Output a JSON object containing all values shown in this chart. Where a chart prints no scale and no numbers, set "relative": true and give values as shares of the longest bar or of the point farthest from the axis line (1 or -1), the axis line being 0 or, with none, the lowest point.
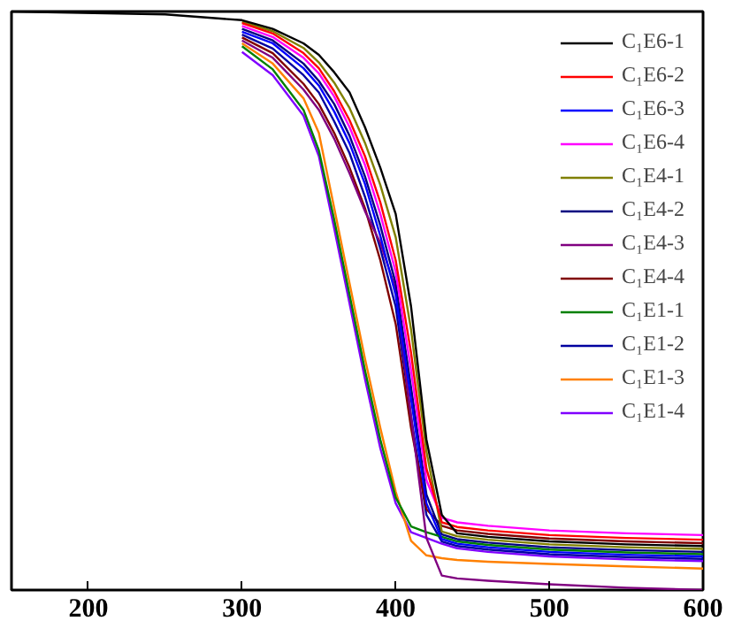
{
  "chart_data": {
    "type": "line",
    "relative": true,
    "legend": "top right",
    "grid": false,
    "marker": "none",
    "line_style": "solid",
    "x": [
      150,
      250,
      300,
      320,
      340,
      350,
      360,
      370,
      380,
      390,
      400,
      410,
      420,
      430,
      440,
      460,
      500,
      550,
      600
    ],
    "xlim": [
      150,
      600
    ],
    "xticks": [
      200,
      300,
      400,
      500,
      600
    ],
    "series": [
      {
        "name": "C₁E6-1",
        "color": "#000000",
        "values": [
          1,
          0.995,
          0.985,
          0.97,
          0.945,
          0.925,
          0.895,
          0.86,
          0.8,
          0.73,
          0.65,
          0.49,
          0.26,
          0.13,
          0.098,
          0.092,
          0.084,
          0.079,
          0.076
        ]
      },
      {
        "name": "C₁E6-2",
        "color": "#ff0000",
        "values": [
          null,
          null,
          0.98,
          0.962,
          0.928,
          0.902,
          0.862,
          0.812,
          0.75,
          0.67,
          0.57,
          0.41,
          0.21,
          0.117,
          0.109,
          0.103,
          0.095,
          0.09,
          0.087
        ]
      },
      {
        "name": "C₁E6-3",
        "color": "#0000ff",
        "values": [
          null,
          null,
          0.965,
          0.945,
          0.902,
          0.872,
          0.827,
          0.772,
          0.702,
          0.612,
          0.51,
          0.33,
          0.15,
          0.088,
          0.08,
          0.074,
          0.066,
          0.061,
          0.058
        ]
      },
      {
        "name": "C₁E6-4",
        "color": "#ff00ff",
        "values": [
          null,
          null,
          0.975,
          0.956,
          0.92,
          0.893,
          0.853,
          0.8,
          0.735,
          0.65,
          0.55,
          0.38,
          0.19,
          0.125,
          0.117,
          0.111,
          0.103,
          0.098,
          0.095
        ]
      },
      {
        "name": "C₁E4-1",
        "color": "#808000",
        "values": [
          null,
          null,
          0.982,
          0.966,
          0.937,
          0.912,
          0.877,
          0.833,
          0.773,
          0.7,
          0.61,
          0.45,
          0.24,
          0.101,
          0.093,
          0.087,
          0.079,
          0.074,
          0.071
        ]
      },
      {
        "name": "C₁E4-2",
        "color": "#000080",
        "values": [
          null,
          null,
          0.97,
          0.95,
          0.91,
          0.88,
          0.84,
          0.785,
          0.715,
          0.63,
          0.53,
          0.35,
          0.165,
          0.096,
          0.088,
          0.082,
          0.074,
          0.069,
          0.066
        ]
      },
      {
        "name": "C₁E4-3",
        "color": "#800080",
        "values": [
          null,
          null,
          0.95,
          0.92,
          0.865,
          0.83,
          0.78,
          0.72,
          0.655,
          0.6,
          0.52,
          0.3,
          0.09,
          0.025,
          0.02,
          0.016,
          0.01,
          0.004,
          0.0
        ]
      },
      {
        "name": "C₁E4-4",
        "color": "#800000",
        "values": [
          null,
          null,
          0.955,
          0.928,
          0.875,
          0.84,
          0.79,
          0.73,
          0.66,
          0.57,
          0.46,
          0.28,
          0.14,
          0.111,
          0.103,
          0.097,
          0.089,
          0.084,
          0.081
        ]
      },
      {
        "name": "C₁E1-1",
        "color": "#008000",
        "values": [
          null,
          null,
          0.94,
          0.9,
          0.83,
          0.76,
          0.64,
          0.51,
          0.38,
          0.26,
          0.16,
          0.11,
          0.1,
          0.092,
          0.084,
          0.078,
          0.07,
          0.065,
          0.062
        ]
      },
      {
        "name": "C₁E1-2",
        "color": "#0000a0",
        "values": [
          null,
          null,
          0.96,
          0.936,
          0.89,
          0.86,
          0.81,
          0.755,
          0.68,
          0.59,
          0.49,
          0.3,
          0.13,
          0.084,
          0.076,
          0.07,
          0.062,
          0.057,
          0.054
        ]
      },
      {
        "name": "C₁E1-3",
        "color": "#ff8000",
        "values": [
          null,
          null,
          0.945,
          0.91,
          0.85,
          0.79,
          0.66,
          0.53,
          0.4,
          0.28,
          0.17,
          0.085,
          0.06,
          0.055,
          0.052,
          0.049,
          0.045,
          0.041,
          0.037
        ]
      },
      {
        "name": "C₁E1-4",
        "color": "#8000ff",
        "values": [
          null,
          null,
          0.93,
          0.89,
          0.82,
          0.75,
          0.625,
          0.495,
          0.365,
          0.245,
          0.15,
          0.1,
          0.09,
          0.08,
          0.072,
          0.066,
          0.058,
          0.053,
          0.05
        ]
      }
    ]
  }
}
